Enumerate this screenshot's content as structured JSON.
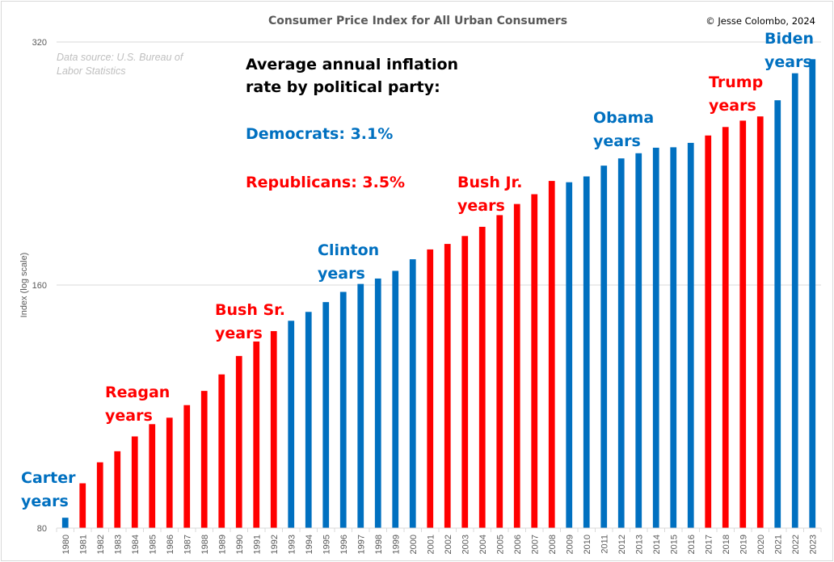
{
  "chart_data": {
    "type": "bar",
    "title": "Consumer Price Index for All Urban Consumers",
    "copyright": "© Jesse Colombo, 2024",
    "source_note": [
      "Data source: U.S. Bureau of",
      "Labor Statistics"
    ],
    "xlabel": "",
    "ylabel": "Index (log scale)",
    "yscale": "log",
    "ylim": [
      80,
      320
    ],
    "yticks": [
      80,
      160,
      320
    ],
    "ytick_labels": [
      "80",
      "160",
      "320"
    ],
    "grid": true,
    "legend": "none",
    "categories": [
      "1980",
      "1981",
      "1982",
      "1983",
      "1984",
      "1985",
      "1986",
      "1987",
      "1988",
      "1989",
      "1990",
      "1991",
      "1992",
      "1993",
      "1994",
      "1995",
      "1996",
      "1997",
      "1998",
      "1999",
      "2000",
      "2001",
      "2002",
      "2003",
      "2004",
      "2005",
      "2006",
      "2007",
      "2008",
      "2009",
      "2010",
      "2011",
      "2012",
      "2013",
      "2014",
      "2015",
      "2016",
      "2017",
      "2018",
      "2019",
      "2020",
      "2021",
      "2022",
      "2023"
    ],
    "values": [
      82.4,
      90.9,
      96.5,
      99.6,
      103.9,
      107.6,
      109.6,
      113.6,
      118.3,
      124.0,
      130.7,
      136.2,
      140.3,
      144.5,
      148.2,
      152.4,
      156.9,
      160.5,
      163.0,
      166.6,
      172.2,
      177.1,
      179.9,
      184.0,
      188.9,
      195.3,
      201.6,
      207.3,
      215.3,
      214.5,
      218.1,
      224.9,
      229.6,
      233.0,
      236.7,
      237.0,
      240.0,
      245.1,
      251.1,
      255.7,
      258.8,
      271.0,
      292.7,
      304.7
    ],
    "party": [
      "D",
      "R",
      "R",
      "R",
      "R",
      "R",
      "R",
      "R",
      "R",
      "R",
      "R",
      "R",
      "R",
      "D",
      "D",
      "D",
      "D",
      "D",
      "D",
      "D",
      "D",
      "R",
      "R",
      "R",
      "R",
      "R",
      "R",
      "R",
      "R",
      "D",
      "D",
      "D",
      "D",
      "D",
      "D",
      "D",
      "D",
      "R",
      "R",
      "R",
      "R",
      "D",
      "D",
      "D"
    ],
    "colors": {
      "D": "#0070c0",
      "R": "#ff0000"
    },
    "annotations": {
      "summary_heading": [
        "Average annual inflation",
        "rate by political party:"
      ],
      "democrats": "Democrats: 3.1%",
      "republicans": "Republicans: 3.5%",
      "eras": [
        {
          "name": "Carter",
          "lines": [
            "Carter",
            "years"
          ],
          "party": "D"
        },
        {
          "name": "Reagan",
          "lines": [
            "Reagan",
            "years"
          ],
          "party": "R"
        },
        {
          "name": "Bush Sr.",
          "lines": [
            "Bush Sr.",
            "years"
          ],
          "party": "R"
        },
        {
          "name": "Clinton",
          "lines": [
            "Clinton",
            "years"
          ],
          "party": "D"
        },
        {
          "name": "Bush Jr.",
          "lines": [
            "Bush Jr.",
            "years"
          ],
          "party": "R"
        },
        {
          "name": "Obama",
          "lines": [
            "Obama",
            "years"
          ],
          "party": "D"
        },
        {
          "name": "Trump",
          "lines": [
            "Trump",
            "years"
          ],
          "party": "R"
        },
        {
          "name": "Biden",
          "lines": [
            "Biden",
            "years"
          ],
          "party": "D"
        }
      ]
    }
  }
}
